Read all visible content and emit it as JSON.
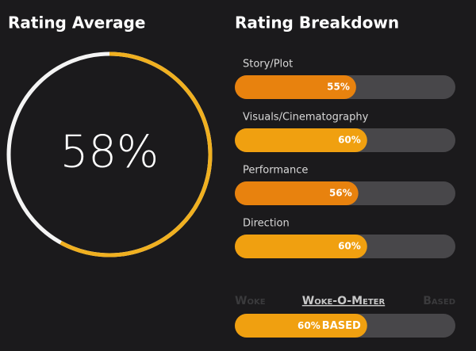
{
  "rating_average": {
    "title": "Rating Average",
    "value": 58,
    "label": "58%"
  },
  "rating_breakdown": {
    "title": "Rating Breakdown",
    "items": [
      {
        "name": "Story/Plot",
        "value": 55,
        "label": "55%",
        "color": "#e8820e"
      },
      {
        "name": "Visuals/Cinematography",
        "value": 60,
        "label": "60%",
        "color": "#f0a010"
      },
      {
        "name": "Performance",
        "value": 56,
        "label": "56%",
        "color": "#e8820e"
      },
      {
        "name": "Direction",
        "value": 60,
        "label": "60%",
        "color": "#f0a010"
      }
    ]
  },
  "woke_meter": {
    "left": "Woke",
    "title": "Woke-O-Meter",
    "right": "Based",
    "value": 60,
    "label": "60%",
    "verdict": "BASED",
    "color": "#f0a010"
  }
}
